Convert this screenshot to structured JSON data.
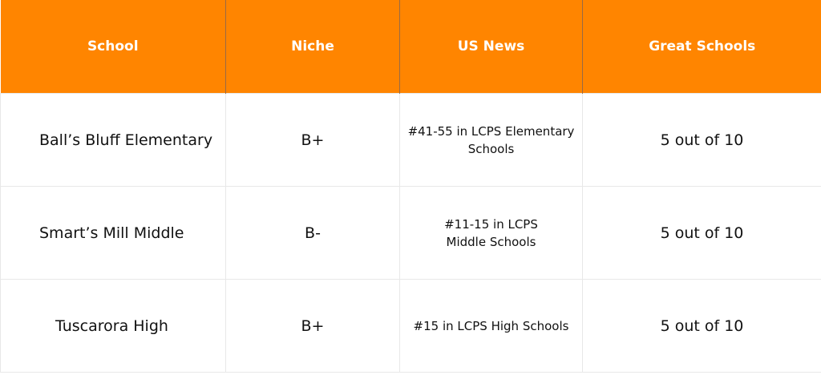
{
  "colors": {
    "header_bg": "#ff8500",
    "header_text": "#ffffff"
  },
  "headers": [
    "School",
    "Niche",
    "US News",
    "Great Schools"
  ],
  "rows": [
    {
      "school": "Ball’s Bluff Elementary",
      "niche": "B+",
      "us_news": "#41-55 in LCPS Elementary Schools",
      "great_schools": "5 out of 10"
    },
    {
      "school": "Smart’s Mill Middle",
      "niche": "B-",
      "us_news": "#11-15 in LCPS Middle Schools",
      "great_schools": "5 out of 10"
    },
    {
      "school": "Tuscarora High",
      "niche": "B+",
      "us_news": "#15 in LCPS High Schools",
      "great_schools": "5 out of 10"
    }
  ]
}
